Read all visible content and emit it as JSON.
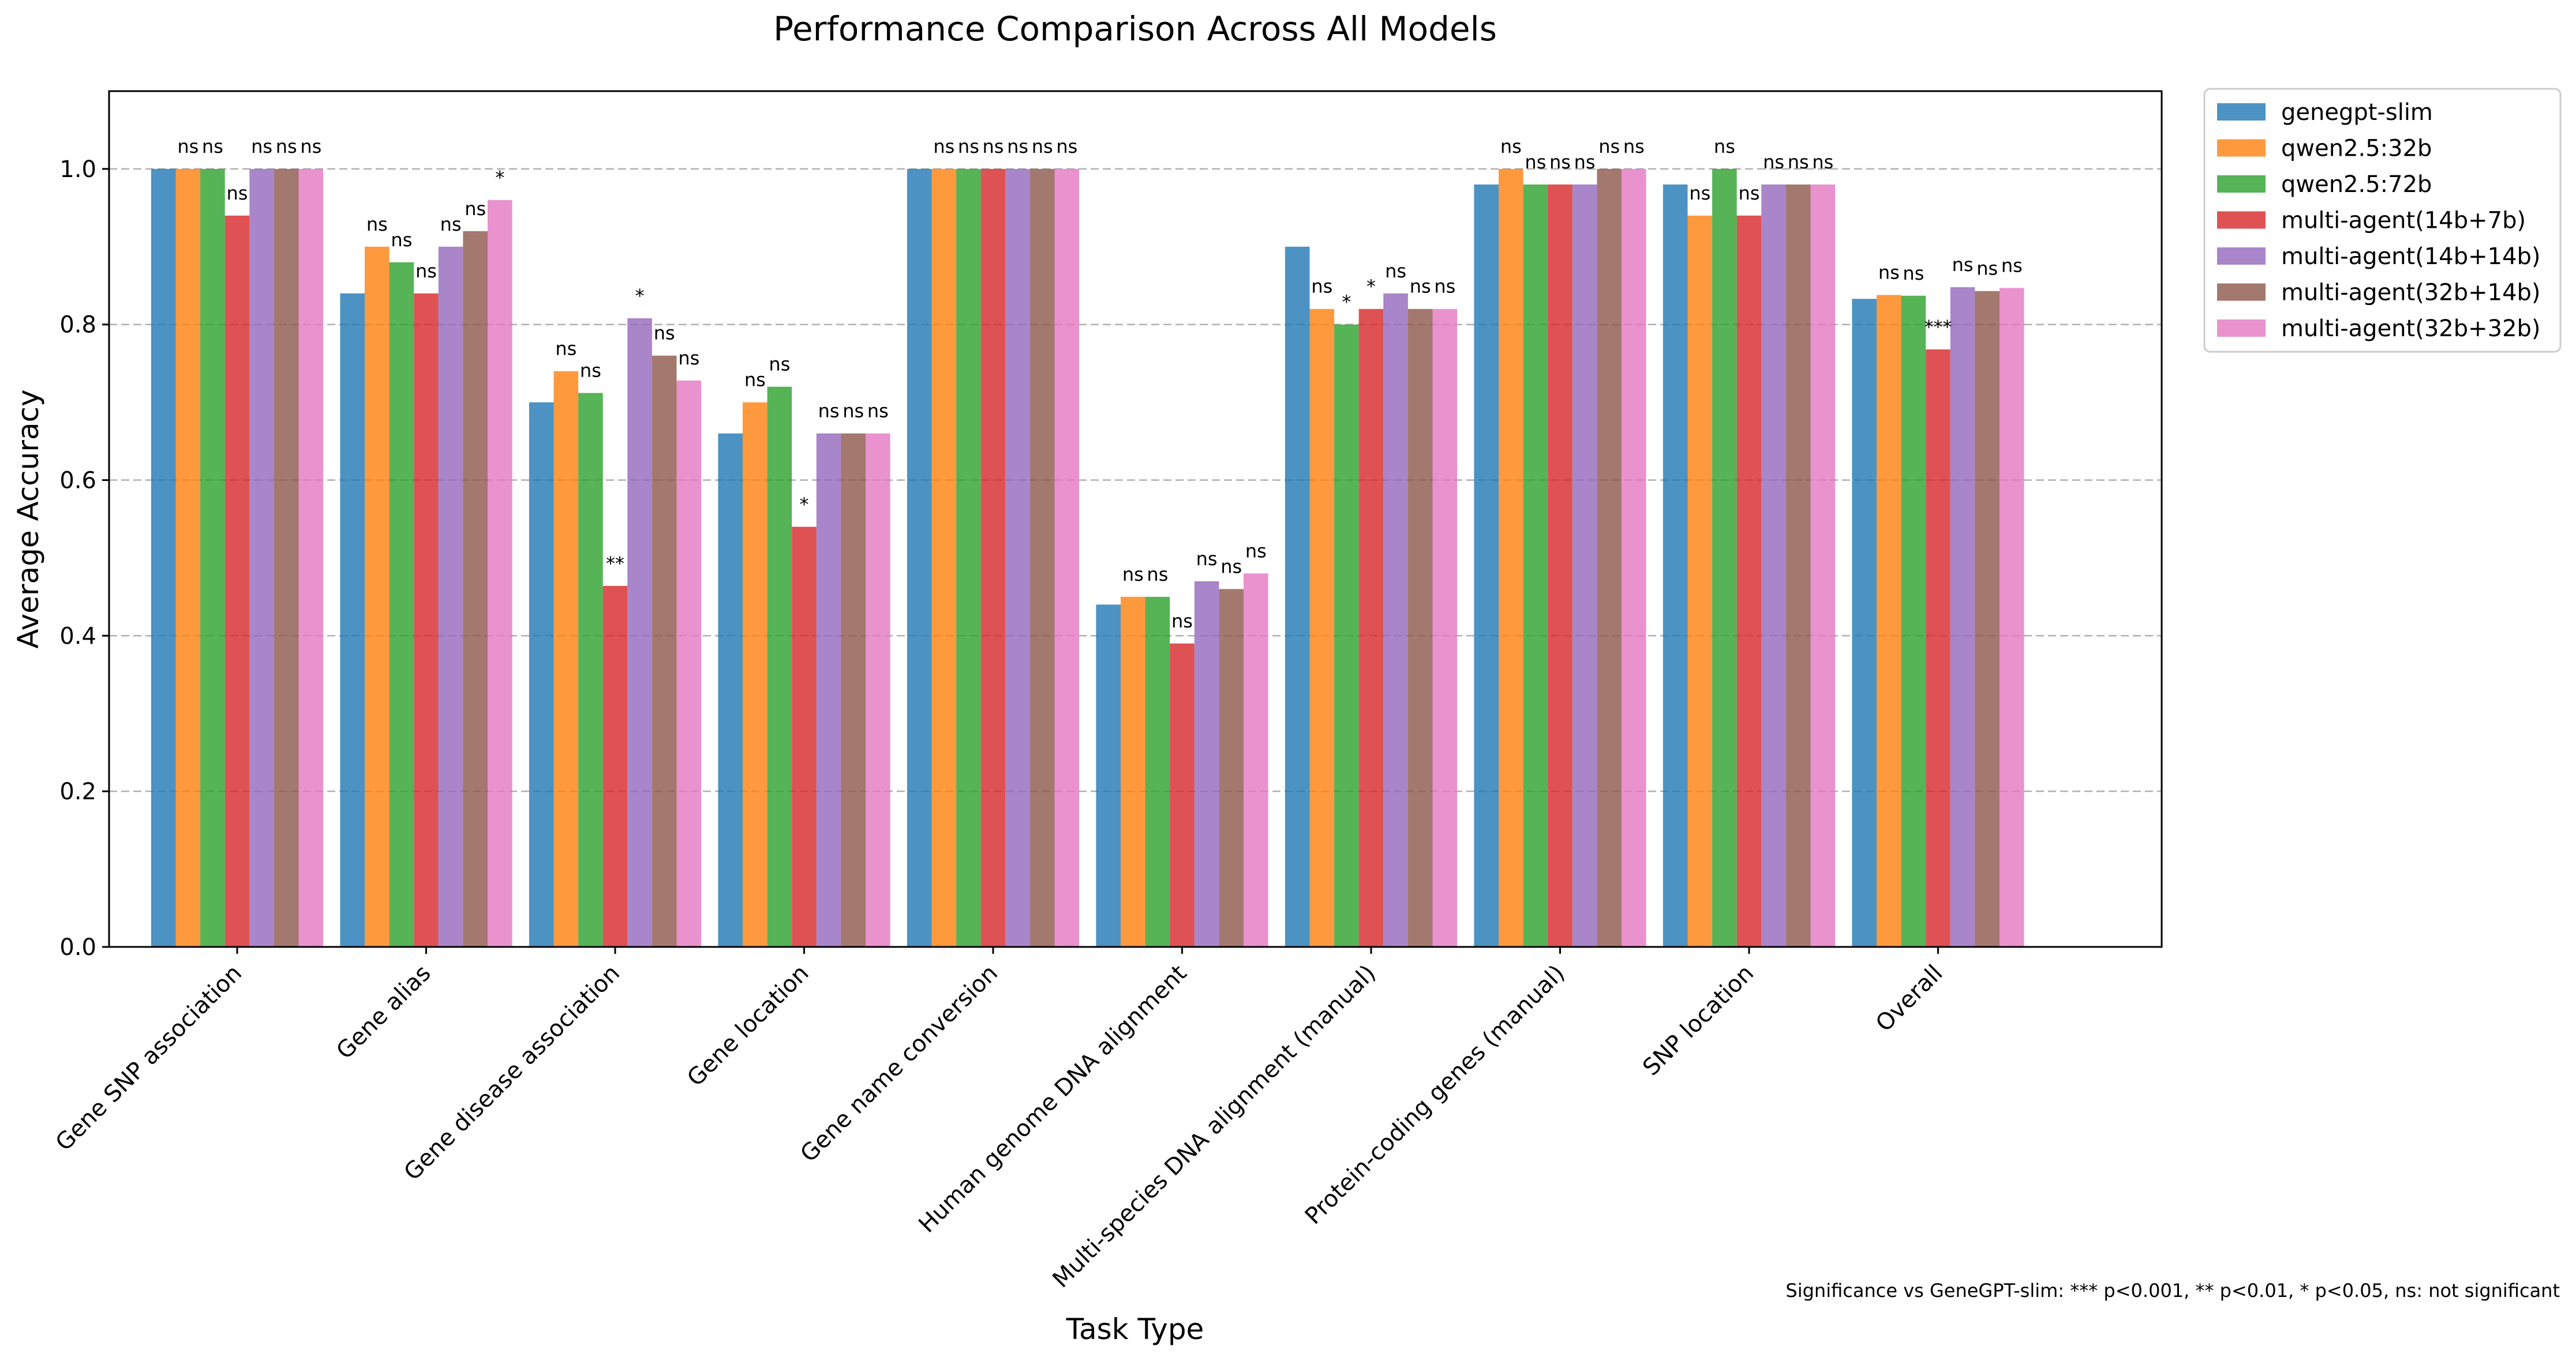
{
  "chart_data": {
    "type": "bar",
    "title": "Performance Comparison Across All Models",
    "xlabel": "Task Type",
    "ylabel": "Average Accuracy",
    "ylim": [
      0,
      1.1
    ],
    "yticks": [
      "0.0",
      "0.2",
      "0.4",
      "0.6",
      "0.8",
      "1.0"
    ],
    "grid": "y dashed",
    "legend_position": "outside right, top",
    "footnote": "Significance vs GeneGPT-slim: *** p<0.001, ** p<0.01, * p<0.05, ns: not significant",
    "categories": [
      "Gene SNP association",
      "Gene alias",
      "Gene disease association",
      "Gene location",
      "Gene name conversion",
      "Human genome DNA alignment",
      "Multi-species DNA alignment (manual)",
      "Protein-coding genes (manual)",
      "SNP location",
      "Overall"
    ],
    "series": [
      {
        "name": "genegpt-slim",
        "color": "#1f77b4",
        "values": [
          1.0,
          0.84,
          0.7,
          0.66,
          1.0,
          0.44,
          0.9,
          0.98,
          0.98,
          0.833
        ]
      },
      {
        "name": "qwen2.5:32b",
        "color": "#ff7f0e",
        "values": [
          1.0,
          0.9,
          0.74,
          0.7,
          1.0,
          0.45,
          0.82,
          1.0,
          0.94,
          0.838
        ]
      },
      {
        "name": "qwen2.5:72b",
        "color": "#2ca02c",
        "values": [
          1.0,
          0.88,
          0.712,
          0.72,
          1.0,
          0.45,
          0.8,
          0.98,
          1.0,
          0.837
        ]
      },
      {
        "name": "multi-agent(14b+7b)",
        "color": "#d62728",
        "values": [
          0.94,
          0.84,
          0.464,
          0.54,
          1.0,
          0.39,
          0.82,
          0.98,
          0.94,
          0.768
        ]
      },
      {
        "name": "multi-agent(14b+14b)",
        "color": "#9467bd",
        "values": [
          1.0,
          0.9,
          0.808,
          0.66,
          1.0,
          0.47,
          0.84,
          0.98,
          0.98,
          0.848
        ]
      },
      {
        "name": "multi-agent(32b+14b)",
        "color": "#8c564b",
        "values": [
          1.0,
          0.92,
          0.76,
          0.66,
          1.0,
          0.46,
          0.82,
          1.0,
          0.98,
          0.843
        ]
      },
      {
        "name": "multi-agent(32b+32b)",
        "color": "#e377c2",
        "values": [
          1.0,
          0.96,
          0.728,
          0.66,
          1.0,
          0.48,
          0.82,
          1.0,
          0.98,
          0.847
        ]
      }
    ],
    "significance_labels": [
      [
        "ns",
        "ns",
        "ns",
        "ns",
        "ns",
        "ns"
      ],
      [
        "ns",
        "ns",
        "ns",
        "ns",
        "ns",
        "*"
      ],
      [
        "ns",
        "ns",
        "**",
        "*",
        "ns",
        "ns"
      ],
      [
        "ns",
        "ns",
        "*",
        "ns",
        "ns",
        "ns"
      ],
      [
        "ns",
        "ns",
        "ns",
        "ns",
        "ns",
        "ns"
      ],
      [
        "ns",
        "ns",
        "ns",
        "ns",
        "ns",
        "ns"
      ],
      [
        "ns",
        "*",
        "*",
        "ns",
        "ns",
        "ns"
      ],
      [
        "ns",
        "ns",
        "ns",
        "ns",
        "ns",
        "ns"
      ],
      [
        "ns",
        "ns",
        "ns",
        "ns",
        "ns",
        "ns"
      ],
      [
        "ns",
        "ns",
        "***",
        "ns",
        "ns",
        "ns"
      ]
    ]
  }
}
